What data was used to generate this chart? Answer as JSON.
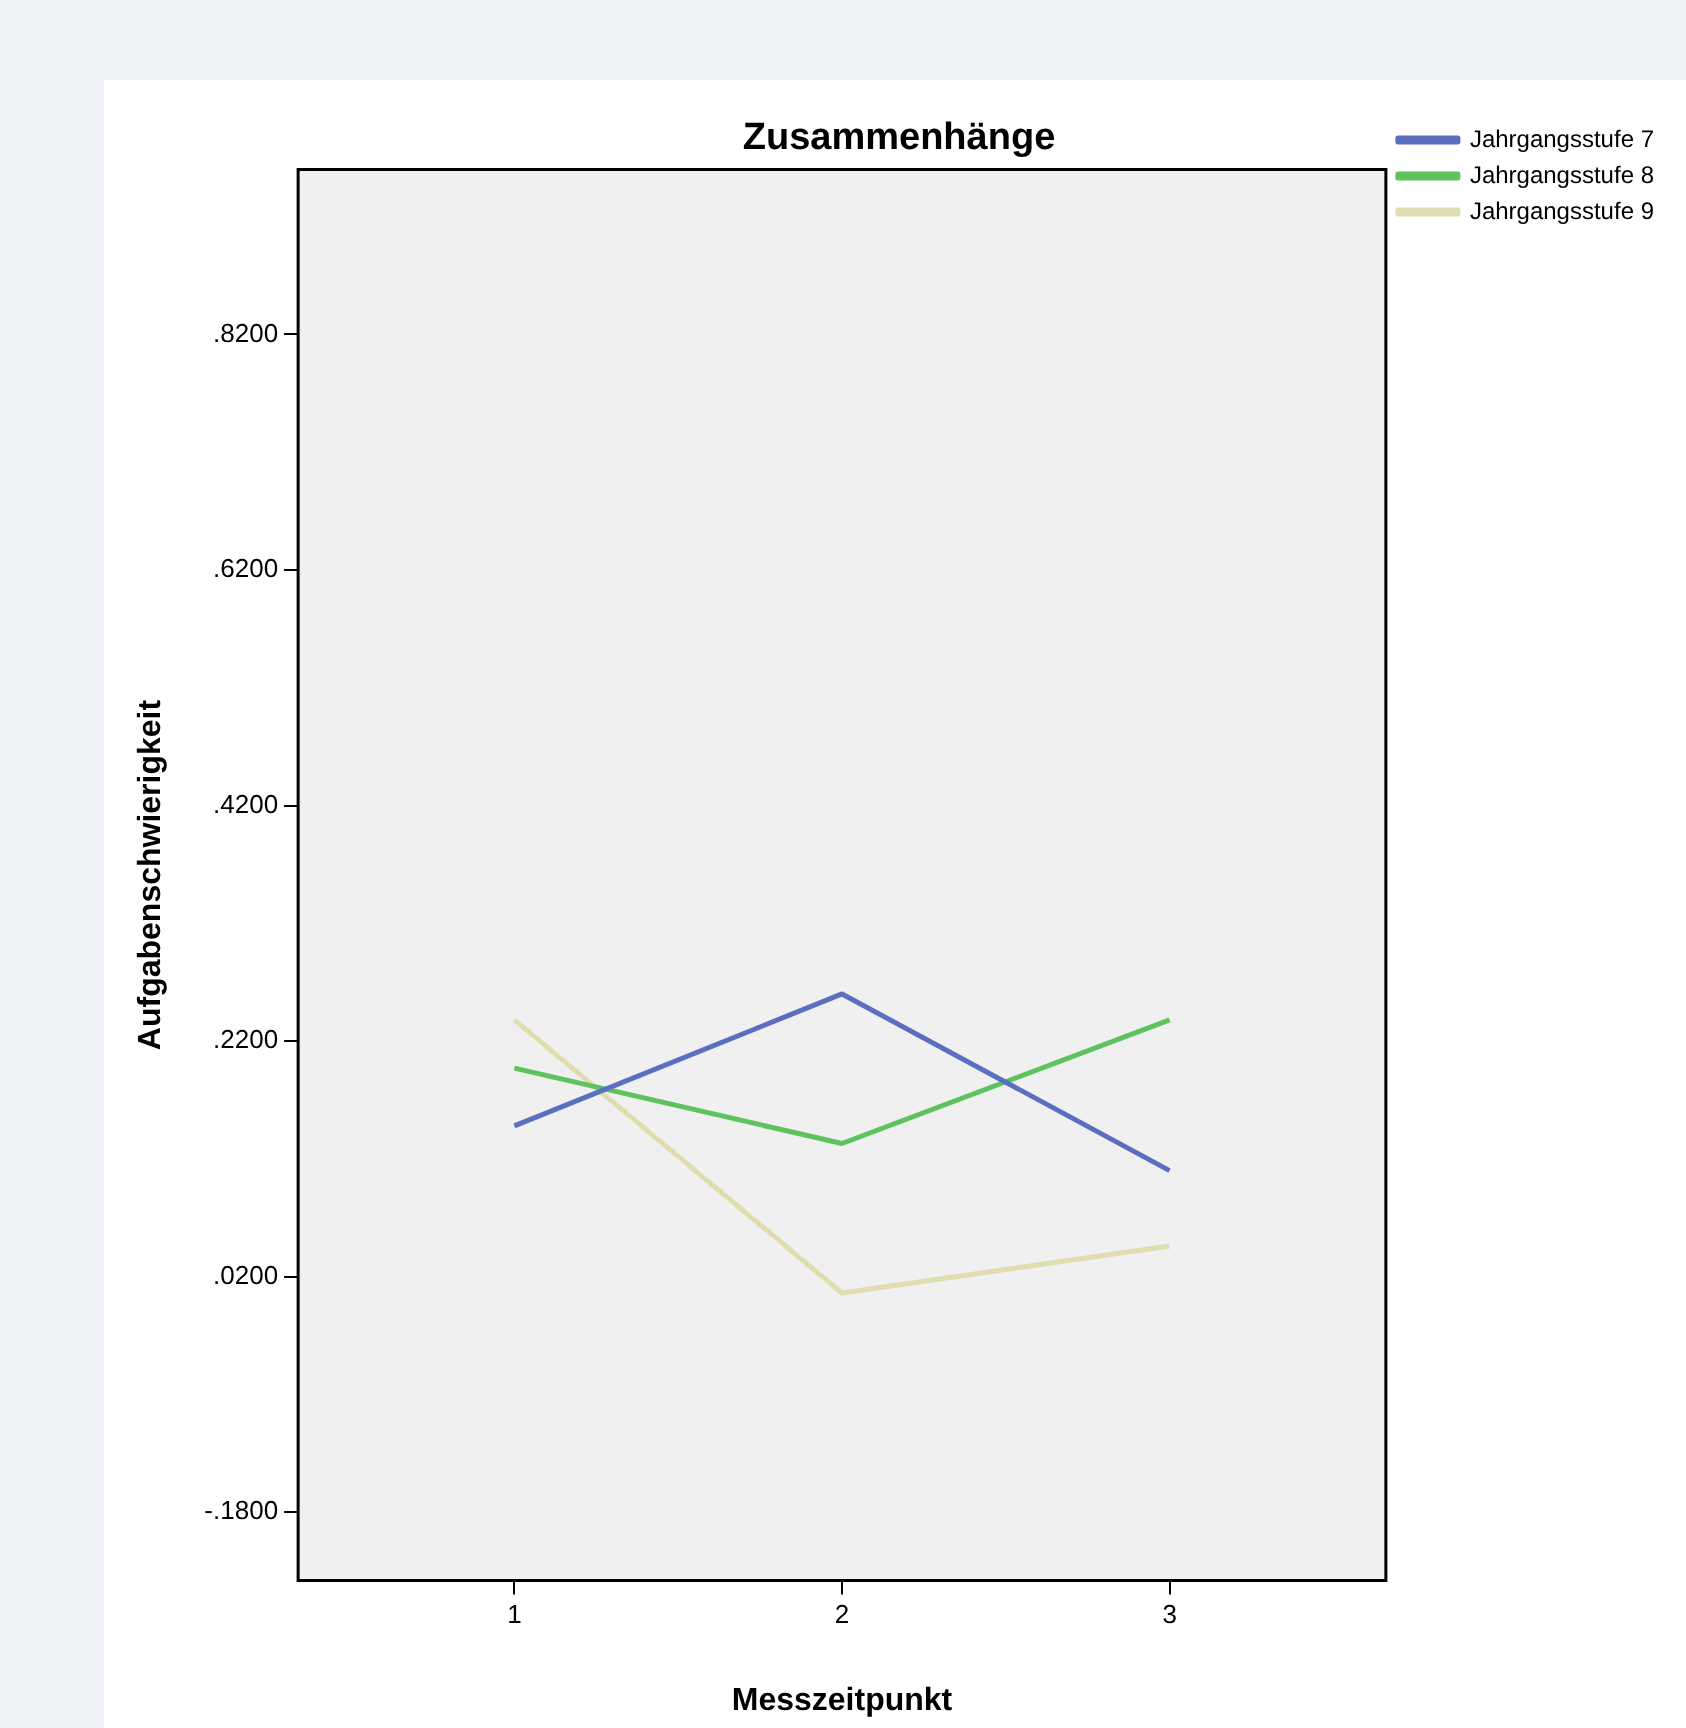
{
  "chart_data": {
    "type": "line",
    "title": "Zusammenhänge",
    "xlabel": "Messzeitpunkt",
    "ylabel": "Aufgabenschwierigkeit",
    "x": [
      1,
      2,
      3
    ],
    "xlim": [
      0.34,
      3.66
    ],
    "xticks": [
      1,
      2,
      3
    ],
    "ylim": [
      -0.238,
      0.96
    ],
    "yticks": [
      {
        "value": -0.18,
        "label": "-.1800"
      },
      {
        "value": 0.02,
        "label": ".0200"
      },
      {
        "value": 0.22,
        "label": ".2200"
      },
      {
        "value": 0.42,
        "label": ".4200"
      },
      {
        "value": 0.62,
        "label": ".6200"
      },
      {
        "value": 0.82,
        "label": ".8200"
      }
    ],
    "series": [
      {
        "name": "Jahrgangsstufe 7",
        "color": "#5b6fc0",
        "values": [
          0.148,
          0.26,
          0.11
        ]
      },
      {
        "name": "Jahrgangsstufe 8",
        "color": "#5ec25e",
        "values": [
          0.197,
          0.133,
          0.238
        ]
      },
      {
        "name": "Jahrgangsstufe 9",
        "color": "#e0ddb0",
        "values": [
          0.238,
          0.006,
          0.046
        ]
      }
    ],
    "legend": "top right",
    "grid": false,
    "marker": "none",
    "line_style": "solid"
  }
}
